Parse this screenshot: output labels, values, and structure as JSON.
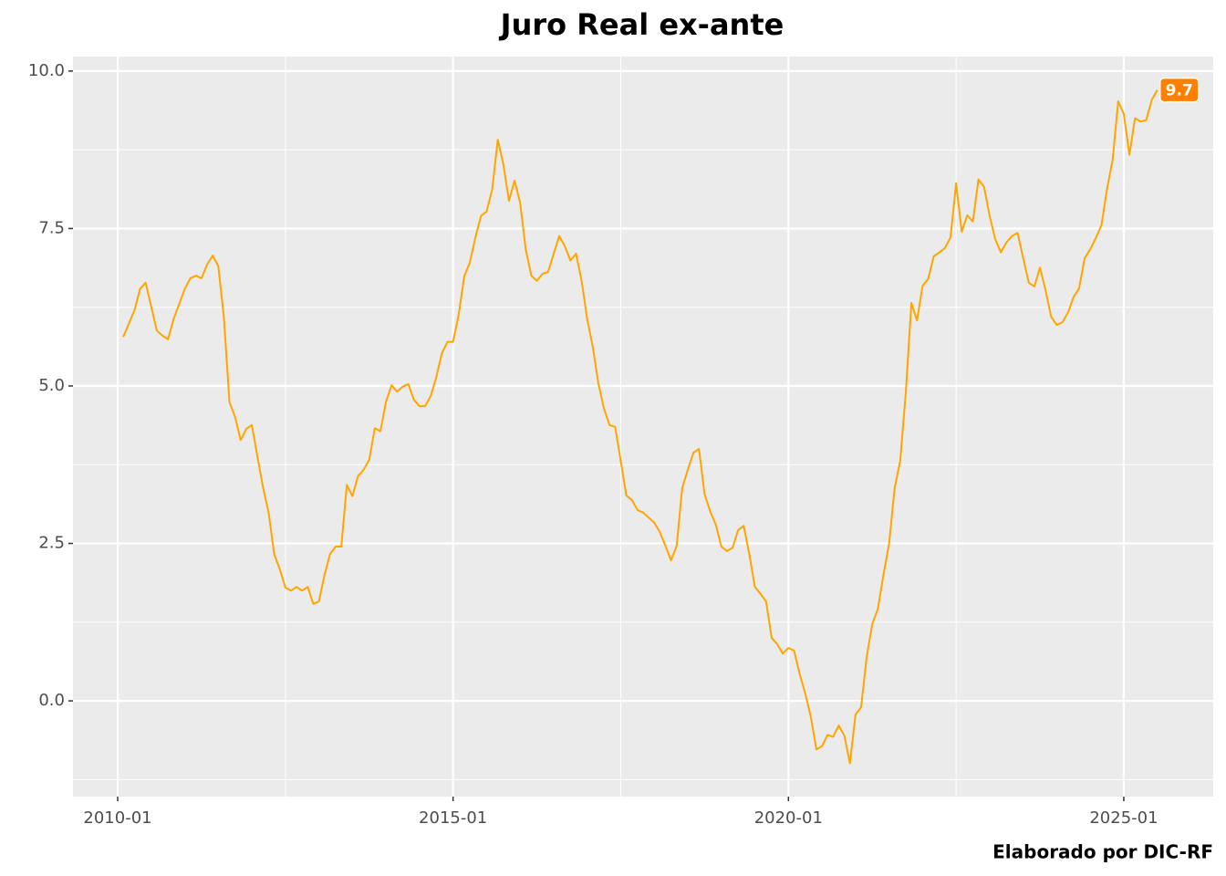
{
  "chart_data": {
    "type": "line",
    "title": "Juro Real ex-ante",
    "caption": "Elaborado por DIC-RF",
    "x": [
      "2010-02",
      "2010-03",
      "2010-04",
      "2010-05",
      "2010-06",
      "2010-07",
      "2010-08",
      "2010-09",
      "2010-10",
      "2010-11",
      "2010-12",
      "2011-01",
      "2011-02",
      "2011-03",
      "2011-04",
      "2011-05",
      "2011-06",
      "2011-07",
      "2011-08",
      "2011-09",
      "2011-10",
      "2011-11",
      "2011-12",
      "2012-01",
      "2012-02",
      "2012-03",
      "2012-04",
      "2012-05",
      "2012-06",
      "2012-07",
      "2012-08",
      "2012-09",
      "2012-10",
      "2012-11",
      "2012-12",
      "2013-01",
      "2013-02",
      "2013-03",
      "2013-04",
      "2013-05",
      "2013-06",
      "2013-07",
      "2013-08",
      "2013-09",
      "2013-10",
      "2013-11",
      "2013-12",
      "2014-01",
      "2014-02",
      "2014-03",
      "2014-04",
      "2014-05",
      "2014-06",
      "2014-07",
      "2014-08",
      "2014-09",
      "2014-10",
      "2014-11",
      "2014-12",
      "2015-01",
      "2015-02",
      "2015-03",
      "2015-04",
      "2015-05",
      "2015-06",
      "2015-07",
      "2015-08",
      "2015-09",
      "2015-10",
      "2015-11",
      "2015-12",
      "2016-01",
      "2016-02",
      "2016-03",
      "2016-04",
      "2016-05",
      "2016-06",
      "2016-07",
      "2016-08",
      "2016-09",
      "2016-10",
      "2016-11",
      "2016-12",
      "2017-01",
      "2017-02",
      "2017-03",
      "2017-04",
      "2017-05",
      "2017-06",
      "2017-07",
      "2017-08",
      "2017-09",
      "2017-10",
      "2017-11",
      "2017-12",
      "2018-01",
      "2018-02",
      "2018-03",
      "2018-04",
      "2018-05",
      "2018-06",
      "2018-07",
      "2018-08",
      "2018-09",
      "2018-10",
      "2018-11",
      "2018-12",
      "2019-01",
      "2019-02",
      "2019-03",
      "2019-04",
      "2019-05",
      "2019-06",
      "2019-07",
      "2019-08",
      "2019-09",
      "2019-10",
      "2019-11",
      "2019-12",
      "2020-01",
      "2020-02",
      "2020-03",
      "2020-04",
      "2020-05",
      "2020-06",
      "2020-07",
      "2020-08",
      "2020-09",
      "2020-10",
      "2020-11",
      "2020-12",
      "2021-01",
      "2021-02",
      "2021-03",
      "2021-04",
      "2021-05",
      "2021-06",
      "2021-07",
      "2021-08",
      "2021-09",
      "2021-10",
      "2021-11",
      "2021-12",
      "2022-01",
      "2022-02",
      "2022-03",
      "2022-04",
      "2022-05",
      "2022-06",
      "2022-07",
      "2022-08",
      "2022-09",
      "2022-10",
      "2022-11",
      "2022-12",
      "2023-01",
      "2023-02",
      "2023-03",
      "2023-04",
      "2023-05",
      "2023-06",
      "2023-07",
      "2023-08",
      "2023-09",
      "2023-10",
      "2023-11",
      "2023-12",
      "2024-01",
      "2024-02",
      "2024-03",
      "2024-04",
      "2024-05",
      "2024-06",
      "2024-07",
      "2024-08",
      "2024-09",
      "2024-10",
      "2024-11",
      "2024-12",
      "2025-01",
      "2025-02",
      "2025-03",
      "2025-04",
      "2025-05",
      "2025-06",
      "2025-07"
    ],
    "series": [
      {
        "name": "Juro Real ex-ante",
        "color": "#FFA500",
        "values": [
          5.78,
          5.99,
          6.2,
          6.54,
          6.64,
          6.26,
          5.88,
          5.8,
          5.74,
          6.06,
          6.3,
          6.54,
          6.71,
          6.75,
          6.71,
          6.93,
          7.07,
          6.9,
          6.09,
          4.74,
          4.51,
          4.14,
          4.32,
          4.38,
          3.88,
          3.39,
          2.99,
          2.33,
          2.09,
          1.8,
          1.75,
          1.81,
          1.75,
          1.81,
          1.54,
          1.58,
          2.0,
          2.33,
          2.45,
          2.45,
          3.43,
          3.25,
          3.57,
          3.67,
          3.83,
          4.33,
          4.28,
          4.75,
          5.01,
          4.91,
          4.99,
          5.03,
          4.78,
          4.68,
          4.68,
          4.84,
          5.14,
          5.52,
          5.7,
          5.7,
          6.13,
          6.74,
          6.96,
          7.36,
          7.7,
          7.77,
          8.12,
          8.91,
          8.52,
          7.94,
          8.26,
          7.91,
          7.17,
          6.75,
          6.67,
          6.78,
          6.81,
          7.1,
          7.38,
          7.22,
          6.99,
          7.1,
          6.67,
          6.06,
          5.62,
          5.04,
          4.64,
          4.38,
          4.35,
          3.81,
          3.26,
          3.19,
          3.03,
          2.99,
          2.91,
          2.83,
          2.68,
          2.46,
          2.23,
          2.46,
          3.38,
          3.67,
          3.94,
          4.0,
          3.28,
          3.01,
          2.8,
          2.45,
          2.38,
          2.43,
          2.71,
          2.78,
          2.33,
          1.81,
          1.7,
          1.58,
          1.0,
          0.9,
          0.75,
          0.84,
          0.8,
          0.43,
          0.12,
          -0.25,
          -0.77,
          -0.72,
          -0.54,
          -0.57,
          -0.39,
          -0.55,
          -0.99,
          -0.22,
          -0.1,
          0.7,
          1.22,
          1.46,
          2.0,
          2.49,
          3.38,
          3.81,
          4.9,
          6.32,
          6.04,
          6.59,
          6.7,
          7.06,
          7.12,
          7.19,
          7.36,
          8.22,
          7.45,
          7.71,
          7.61,
          8.28,
          8.16,
          7.7,
          7.33,
          7.12,
          7.28,
          7.38,
          7.43,
          7.03,
          6.64,
          6.58,
          6.88,
          6.52,
          6.1,
          5.97,
          6.01,
          6.16,
          6.41,
          6.55,
          7.03,
          7.17,
          7.35,
          7.55,
          8.13,
          8.59,
          9.52,
          9.32,
          8.67,
          9.25,
          9.2,
          9.22,
          9.54,
          9.7
        ]
      }
    ],
    "label_color": "#FF7F00",
    "xlim": [
      "2009-05",
      "2026-05"
    ],
    "xticks": [
      "2010-01",
      "2015-01",
      "2020-01",
      "2025-01"
    ],
    "xminorticks": [
      "2012-07",
      "2017-07",
      "2022-07"
    ],
    "ylim": [
      -1.52,
      10.23
    ],
    "yticks": [
      {
        "value": 0,
        "label": "0.0"
      },
      2.5,
      {
        "value": 5,
        "label": "5.0"
      },
      7.5,
      {
        "value": 10,
        "label": "10.0"
      }
    ],
    "yminorticks": [
      -1.25,
      1.25,
      3.75,
      6.25,
      8.75
    ],
    "grid": true
  }
}
